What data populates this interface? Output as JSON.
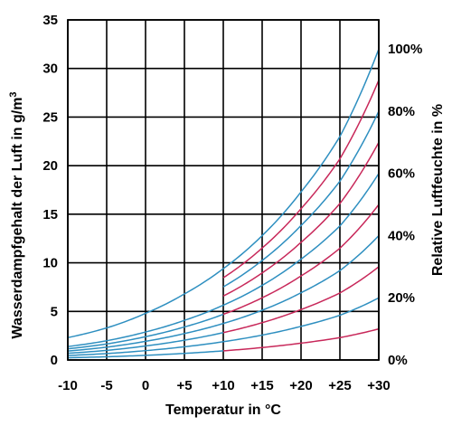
{
  "chart_data": {
    "type": "line",
    "title": "",
    "xlabel": "Temperatur in °C",
    "ylabel_left": "Wasserdampfgehalt der Luft in g/m³",
    "ylabel_left_main": "Wasserdampfgehalt der Luft in g/m",
    "ylabel_left_sup": "3",
    "ylabel_right": "Relative Luftfeuchte in %",
    "xlim": [
      -10,
      30
    ],
    "ylim": [
      0,
      35
    ],
    "x_ticks": [
      -10,
      -5,
      0,
      5,
      10,
      15,
      20,
      25,
      30
    ],
    "x_tick_labels": [
      "-10",
      "-5",
      "0",
      "+5",
      "+10",
      "+15",
      "+20",
      "+25",
      "+30"
    ],
    "y_ticks": [
      0,
      5,
      10,
      15,
      20,
      25,
      30,
      35
    ],
    "y_tick_labels": [
      "0",
      "5",
      "10",
      "15",
      "20",
      "25",
      "30",
      "35"
    ],
    "right_ticks": [
      {
        "label": "0%",
        "y": 0
      },
      {
        "label": "20%",
        "y": 6.4
      },
      {
        "label": "40%",
        "y": 12.8
      },
      {
        "label": "60%",
        "y": 19.2
      },
      {
        "label": "80%",
        "y": 25.6
      },
      {
        "label": "100%",
        "y": 32
      }
    ],
    "grid": true,
    "colors": {
      "blue": "#2e8fc0",
      "red": "#c8285a"
    },
    "x": [
      -10,
      -5,
      0,
      5,
      10,
      15,
      20,
      25,
      30
    ],
    "saturation": [
      2.3,
      3.3,
      4.8,
      6.8,
      9.4,
      12.8,
      17.3,
      23.0,
      32.0
    ],
    "series": [
      {
        "rh": 10,
        "color_below_10": "blue",
        "color_above_10": "red"
      },
      {
        "rh": 20,
        "color_below_10": "blue",
        "color_above_10": "blue"
      },
      {
        "rh": 30,
        "color_below_10": "blue",
        "color_above_10": "red"
      },
      {
        "rh": 40,
        "color_below_10": "blue",
        "color_above_10": "blue"
      },
      {
        "rh": 50,
        "color_below_10": "blue",
        "color_above_10": "red"
      },
      {
        "rh": 60,
        "color_below_10": "blue",
        "color_above_10": "blue"
      },
      {
        "rh": 70,
        "color_below_10": "none",
        "color_above_10": "red"
      },
      {
        "rh": 80,
        "color_below_10": "none",
        "color_above_10": "blue"
      },
      {
        "rh": 90,
        "color_below_10": "none",
        "color_above_10": "red"
      },
      {
        "rh": 100,
        "color_below_10": "blue",
        "color_above_10": "blue"
      }
    ]
  }
}
